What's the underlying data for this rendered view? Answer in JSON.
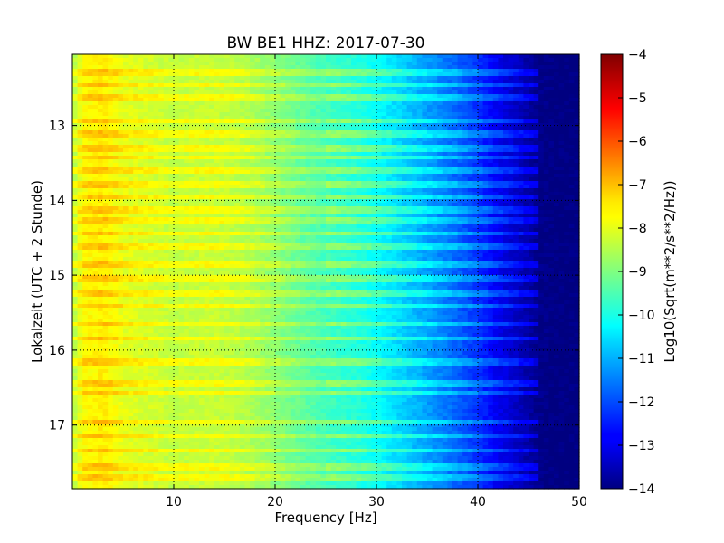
{
  "chart_data": {
    "type": "heatmap",
    "title": "BW BE1 HHZ: 2017-07-30",
    "xlabel": "Frequency [Hz]",
    "ylabel": "Lokalzeit (UTC + 2 Stunde)",
    "xlim": [
      0,
      50
    ],
    "ylim": [
      17.85,
      12.05
    ],
    "y_inverted": true,
    "x_ticks": [
      10,
      20,
      30,
      40,
      50
    ],
    "x_tick_labels": [
      "10",
      "20",
      "30",
      "40",
      "50"
    ],
    "y_ticks": [
      13,
      14,
      15,
      16,
      17
    ],
    "y_tick_labels": [
      "13",
      "14",
      "15",
      "16",
      "17"
    ],
    "grid": true,
    "colormap": "jet",
    "colorbar": {
      "label": "Log10(Sqrt(m**2/s**2/Hz))",
      "range": [
        -14,
        -4
      ],
      "ticks": [
        -4,
        -5,
        -6,
        -7,
        -8,
        -9,
        -10,
        -11,
        -12,
        -13,
        -14
      ],
      "tick_labels": [
        "−4",
        "−5",
        "−6",
        "−7",
        "−8",
        "−9",
        "−10",
        "−11",
        "−12",
        "−13",
        "−14"
      ]
    },
    "frequency_profile": {
      "frequency_hz": [
        0,
        0.5,
        1,
        2,
        3,
        4,
        5,
        8,
        10,
        12,
        14,
        16,
        18,
        20,
        22,
        25,
        28,
        30,
        32,
        34,
        36,
        38,
        40,
        42,
        44,
        46,
        48,
        50
      ],
      "log10_amplitude": [
        -8.6,
        -8.2,
        -7.8,
        -7.7,
        -7.6,
        -7.8,
        -8.0,
        -8.2,
        -8.4,
        -8.3,
        -8.3,
        -8.4,
        -8.6,
        -8.9,
        -9.2,
        -9.6,
        -9.9,
        -10.2,
        -10.6,
        -11.0,
        -11.4,
        -11.8,
        -12.3,
        -12.9,
        -13.4,
        -13.9,
        -14.0,
        -14.0
      ]
    },
    "time_anomaly_hours": [
      12.3,
      12.45,
      12.62,
      12.95,
      13.12,
      13.3,
      13.43,
      13.6,
      13.78,
      13.95,
      14.12,
      14.28,
      14.45,
      14.62,
      14.85,
      15.05,
      15.25,
      15.4,
      15.65,
      15.85,
      16.15,
      16.45,
      16.58,
      16.95,
      17.15,
      17.35,
      17.55,
      17.7
    ]
  }
}
